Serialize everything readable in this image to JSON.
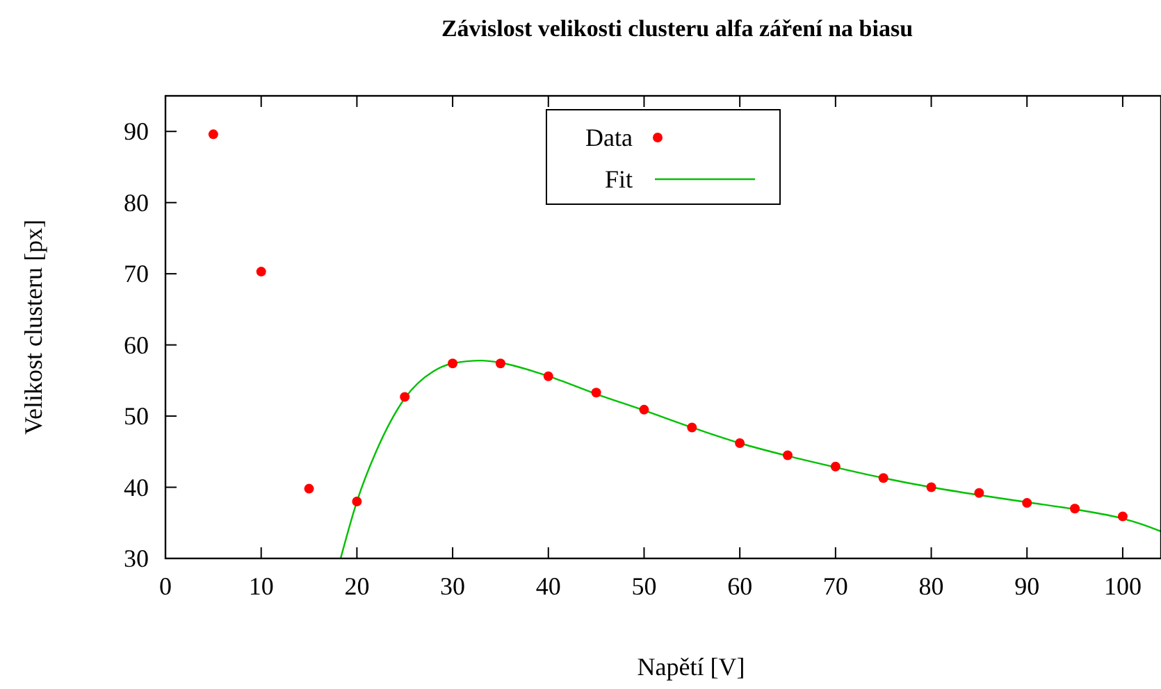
{
  "chart_data": {
    "type": "scatter",
    "title": "Závislost velikosti clusteru alfa záření na biasu",
    "xlabel": "Napětí [V]",
    "ylabel": "Velikost clusteru [px]",
    "xlim": [
      0,
      104
    ],
    "ylim": [
      30,
      95
    ],
    "xticks": [
      0,
      10,
      20,
      30,
      40,
      50,
      60,
      70,
      80,
      90,
      100
    ],
    "yticks": [
      30,
      40,
      50,
      60,
      70,
      80,
      90
    ],
    "grid": false,
    "legend": "top",
    "series": [
      {
        "name": "Data",
        "type": "scatter",
        "marker": "circle",
        "color": "#ff0000",
        "x": [
          5,
          10,
          15,
          20,
          25,
          30,
          35,
          40,
          45,
          50,
          55,
          60,
          65,
          70,
          75,
          80,
          85,
          90,
          95,
          100
        ],
        "values": [
          89.6,
          70.3,
          39.8,
          38.0,
          52.7,
          57.4,
          57.4,
          55.6,
          53.3,
          50.9,
          48.4,
          46.2,
          44.5,
          42.9,
          41.3,
          40.0,
          39.2,
          37.8,
          37.0,
          35.9
        ]
      },
      {
        "name": "Fit",
        "type": "line",
        "line_style": "solid",
        "color": "#00c000",
        "x": [
          18.3,
          20,
          22,
          25,
          28,
          30,
          33,
          35,
          40,
          45,
          50,
          55,
          60,
          65,
          70,
          75,
          80,
          85,
          90,
          95,
          100,
          102,
          104
        ],
        "values": [
          30,
          38,
          45,
          52.5,
          56.3,
          57.4,
          57.8,
          57.5,
          55.6,
          53.1,
          50.8,
          48.4,
          46.2,
          44.4,
          42.8,
          41.3,
          40.0,
          38.9,
          37.9,
          36.9,
          35.6,
          34.8,
          33.8
        ]
      }
    ]
  }
}
